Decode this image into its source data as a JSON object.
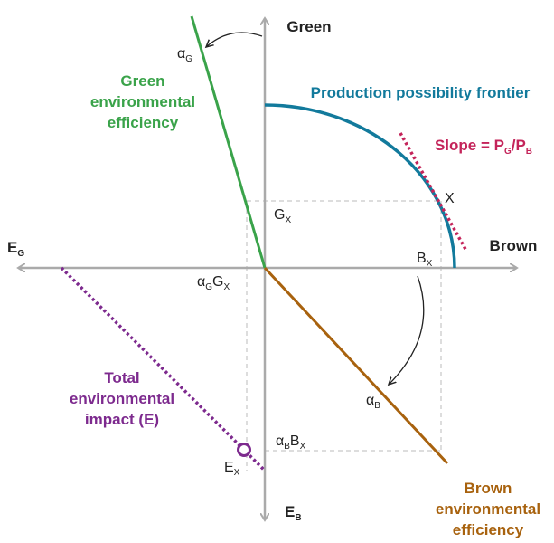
{
  "labels": {
    "green_axis": [
      [
        "Green"
      ]
    ],
    "brown_axis": [
      [
        "Brown"
      ]
    ],
    "eg_axis": [
      [
        "E",
        "G"
      ]
    ],
    "eb_axis": [
      [
        "E",
        "B"
      ]
    ],
    "alpha_g": [
      [
        "α",
        "G"
      ]
    ],
    "green_eff": [
      [
        "Green"
      ],
      [
        "environmental"
      ],
      [
        "efficiency"
      ]
    ],
    "ppf": [
      [
        "Production possibility frontier"
      ]
    ],
    "slope": [
      [
        "Slope = P",
        "G",
        "/P",
        "B"
      ]
    ],
    "x_point": [
      [
        "X"
      ]
    ],
    "gx": [
      [
        "G",
        "X"
      ]
    ],
    "bx": [
      [
        "B",
        "X"
      ]
    ],
    "agx": [
      [
        "α",
        "G",
        "G",
        "X"
      ]
    ],
    "alpha_b": [
      [
        "α",
        "B"
      ]
    ],
    "total": [
      [
        "Total"
      ],
      [
        "environmental"
      ],
      [
        "impact (E)"
      ]
    ],
    "abx": [
      [
        "α",
        "B",
        "B",
        "X"
      ]
    ],
    "ex": [
      [
        "E",
        "X"
      ]
    ],
    "brown_eff": [
      [
        "Brown"
      ],
      [
        "environmental"
      ],
      [
        "efficiency"
      ]
    ]
  }
}
